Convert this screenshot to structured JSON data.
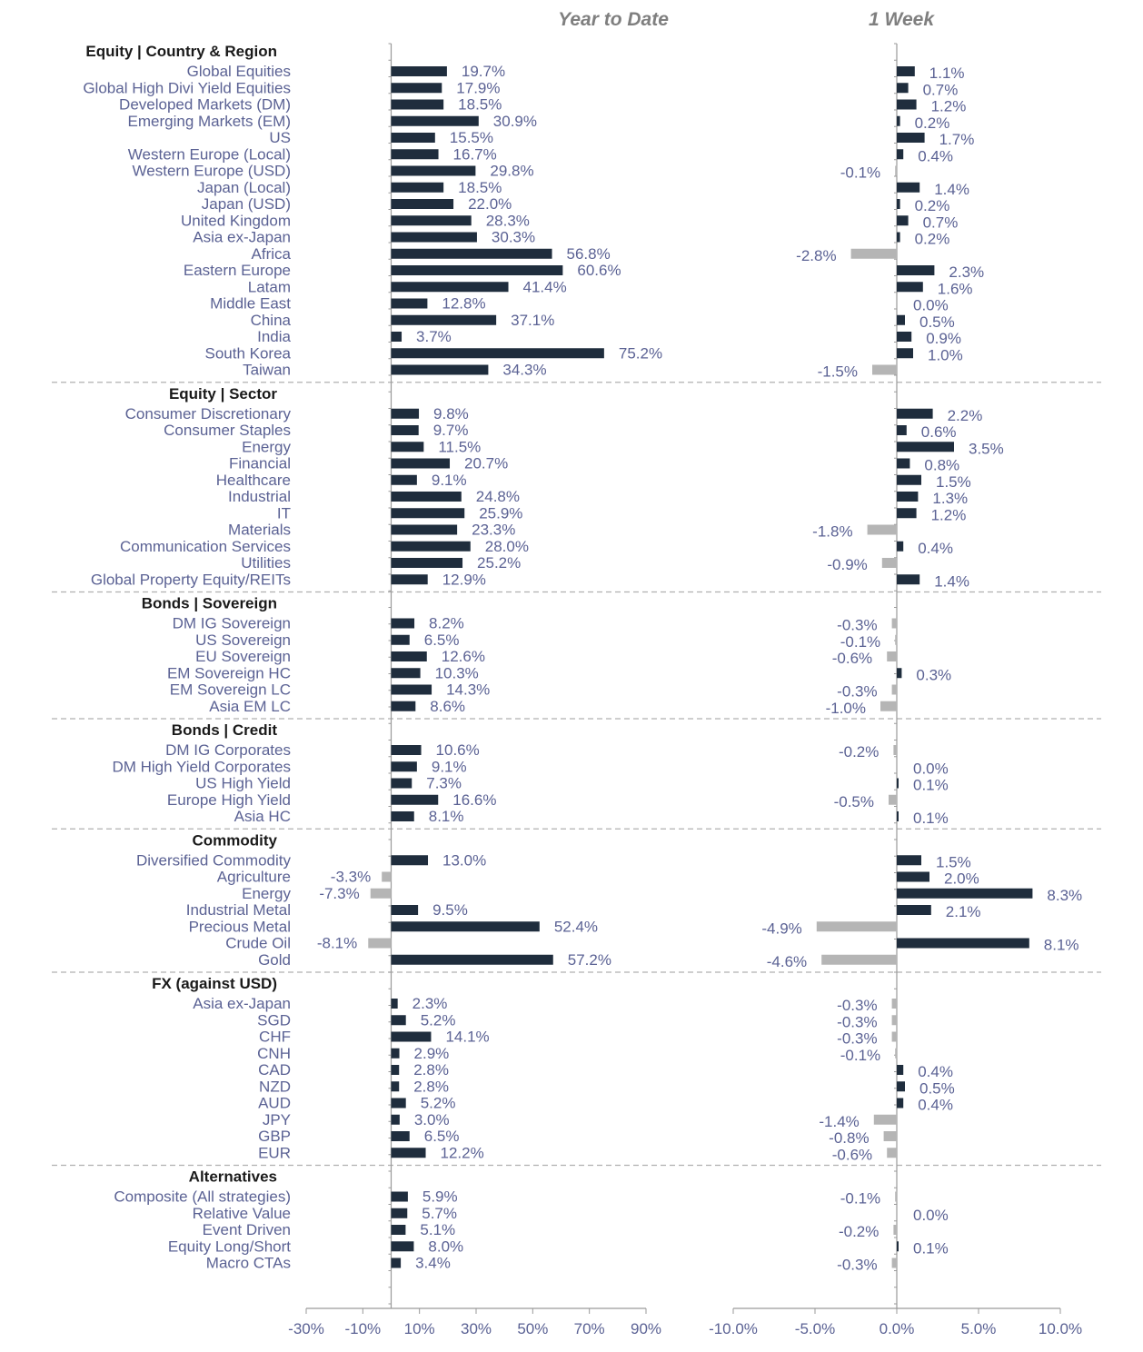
{
  "chart_data": {
    "type": "bar",
    "orientation": "horizontal",
    "colors": {
      "positive": "#1f2d3d",
      "negative": "#b5b5b5",
      "label": "#5b6294",
      "heading": "#1a1a1a"
    },
    "panels": [
      {
        "key": "ytd",
        "title": "Year to Date",
        "xlim": [
          -30,
          90
        ],
        "ticks": [
          -30,
          -10,
          10,
          30,
          50,
          70,
          90
        ],
        "tick_labels": [
          "-30%",
          "-10%",
          "10%",
          "30%",
          "50%",
          "70%",
          "90%"
        ],
        "decimals": 1
      },
      {
        "key": "w1",
        "title": "1 Week",
        "xlim": [
          -10,
          10
        ],
        "ticks": [
          -10,
          -5,
          0,
          5,
          10
        ],
        "tick_labels": [
          "-10.0%",
          "-5.0%",
          "0.0%",
          "5.0%",
          "10.0%"
        ],
        "decimals": 1
      }
    ],
    "sections": [
      {
        "heading": "Equity | Country & Region",
        "rows": [
          {
            "label": "Global Equities",
            "ytd": 19.7,
            "w1": 1.1
          },
          {
            "label": "Global High Divi Yield Equities",
            "ytd": 17.9,
            "w1": 0.7
          },
          {
            "label": "Developed Markets (DM)",
            "ytd": 18.5,
            "w1": 1.2
          },
          {
            "label": "Emerging Markets (EM)",
            "ytd": 30.9,
            "w1": 0.2
          },
          {
            "label": "US",
            "ytd": 15.5,
            "w1": 1.7
          },
          {
            "label": "Western Europe (Local)",
            "ytd": 16.7,
            "w1": 0.4
          },
          {
            "label": "Western Europe (USD)",
            "ytd": 29.8,
            "w1": -0.1
          },
          {
            "label": "Japan (Local)",
            "ytd": 18.5,
            "w1": 1.4
          },
          {
            "label": "Japan (USD)",
            "ytd": 22.0,
            "w1": 0.2
          },
          {
            "label": "United Kingdom",
            "ytd": 28.3,
            "w1": 0.7
          },
          {
            "label": "Asia ex-Japan",
            "ytd": 30.3,
            "w1": 0.2
          },
          {
            "label": "Africa",
            "ytd": 56.8,
            "w1": -2.8
          },
          {
            "label": "Eastern Europe",
            "ytd": 60.6,
            "w1": 2.3
          },
          {
            "label": "Latam",
            "ytd": 41.4,
            "w1": 1.6
          },
          {
            "label": "Middle East",
            "ytd": 12.8,
            "w1": 0.0
          },
          {
            "label": "China",
            "ytd": 37.1,
            "w1": 0.5
          },
          {
            "label": "India",
            "ytd": 3.7,
            "w1": 0.9
          },
          {
            "label": "South Korea",
            "ytd": 75.2,
            "w1": 1.0
          },
          {
            "label": "Taiwan",
            "ytd": 34.3,
            "w1": -1.5
          }
        ]
      },
      {
        "heading": "Equity | Sector",
        "rows": [
          {
            "label": "Consumer Discretionary",
            "ytd": 9.8,
            "w1": 2.2
          },
          {
            "label": "Consumer Staples",
            "ytd": 9.7,
            "w1": 0.6
          },
          {
            "label": "Energy",
            "ytd": 11.5,
            "w1": 3.5
          },
          {
            "label": "Financial",
            "ytd": 20.7,
            "w1": 0.8
          },
          {
            "label": "Healthcare",
            "ytd": 9.1,
            "w1": 1.5
          },
          {
            "label": "Industrial",
            "ytd": 24.8,
            "w1": 1.3
          },
          {
            "label": "IT",
            "ytd": 25.9,
            "w1": 1.2
          },
          {
            "label": "Materials",
            "ytd": 23.3,
            "w1": -1.8
          },
          {
            "label": "Communication Services",
            "ytd": 28.0,
            "w1": 0.4
          },
          {
            "label": "Utilities",
            "ytd": 25.2,
            "w1": -0.9
          },
          {
            "label": "Global Property Equity/REITs",
            "ytd": 12.9,
            "w1": 1.4
          }
        ]
      },
      {
        "heading": "Bonds | Sovereign",
        "rows": [
          {
            "label": "DM IG Sovereign",
            "ytd": 8.2,
            "w1": -0.3
          },
          {
            "label": "US Sovereign",
            "ytd": 6.5,
            "w1": -0.1
          },
          {
            "label": "EU Sovereign",
            "ytd": 12.6,
            "w1": -0.6
          },
          {
            "label": "EM Sovereign HC",
            "ytd": 10.3,
            "w1": 0.3
          },
          {
            "label": "EM Sovereign LC",
            "ytd": 14.3,
            "w1": -0.3
          },
          {
            "label": "Asia EM LC",
            "ytd": 8.6,
            "w1": -1.0
          }
        ]
      },
      {
        "heading": "Bonds | Credit",
        "rows": [
          {
            "label": "DM IG Corporates",
            "ytd": 10.6,
            "w1": -0.2
          },
          {
            "label": "DM High Yield Corporates",
            "ytd": 9.1,
            "w1": 0.0
          },
          {
            "label": "US High Yield",
            "ytd": 7.3,
            "w1": 0.1
          },
          {
            "label": "Europe High Yield",
            "ytd": 16.6,
            "w1": -0.5
          },
          {
            "label": "Asia HC",
            "ytd": 8.1,
            "w1": 0.1
          }
        ]
      },
      {
        "heading": "Commodity",
        "rows": [
          {
            "label": "Diversified Commodity",
            "ytd": 13.0,
            "w1": 1.5
          },
          {
            "label": "Agriculture",
            "ytd": -3.3,
            "w1": 2.0
          },
          {
            "label": "Energy",
            "ytd": -7.3,
            "w1": 8.3
          },
          {
            "label": "Industrial Metal",
            "ytd": 9.5,
            "w1": 2.1
          },
          {
            "label": "Precious Metal",
            "ytd": 52.4,
            "w1": -4.9
          },
          {
            "label": "Crude Oil",
            "ytd": -8.1,
            "w1": 8.1
          },
          {
            "label": "Gold",
            "ytd": 57.2,
            "w1": -4.6
          }
        ]
      },
      {
        "heading": "FX (against USD)",
        "rows": [
          {
            "label": "Asia ex-Japan",
            "ytd": 2.3,
            "w1": -0.3
          },
          {
            "label": "SGD",
            "ytd": 5.2,
            "w1": -0.3
          },
          {
            "label": "CHF",
            "ytd": 14.1,
            "w1": -0.3
          },
          {
            "label": "CNH",
            "ytd": 2.9,
            "w1": -0.1
          },
          {
            "label": "CAD",
            "ytd": 2.8,
            "w1": 0.4
          },
          {
            "label": "NZD",
            "ytd": 2.8,
            "w1": 0.5
          },
          {
            "label": "AUD",
            "ytd": 5.2,
            "w1": 0.4
          },
          {
            "label": "JPY",
            "ytd": 3.0,
            "w1": -1.4
          },
          {
            "label": "GBP",
            "ytd": 6.5,
            "w1": -0.8
          },
          {
            "label": "EUR",
            "ytd": 12.2,
            "w1": -0.6
          }
        ]
      },
      {
        "heading": "Alternatives",
        "rows": [
          {
            "label": "Composite (All strategies)",
            "ytd": 5.9,
            "w1": -0.1
          },
          {
            "label": "Relative Value",
            "ytd": 5.7,
            "w1": 0.0
          },
          {
            "label": "Event Driven",
            "ytd": 5.1,
            "w1": -0.2
          },
          {
            "label": "Equity Long/Short",
            "ytd": 8.0,
            "w1": 0.1
          },
          {
            "label": "Macro CTAs",
            "ytd": 3.4,
            "w1": -0.3
          }
        ]
      }
    ]
  }
}
